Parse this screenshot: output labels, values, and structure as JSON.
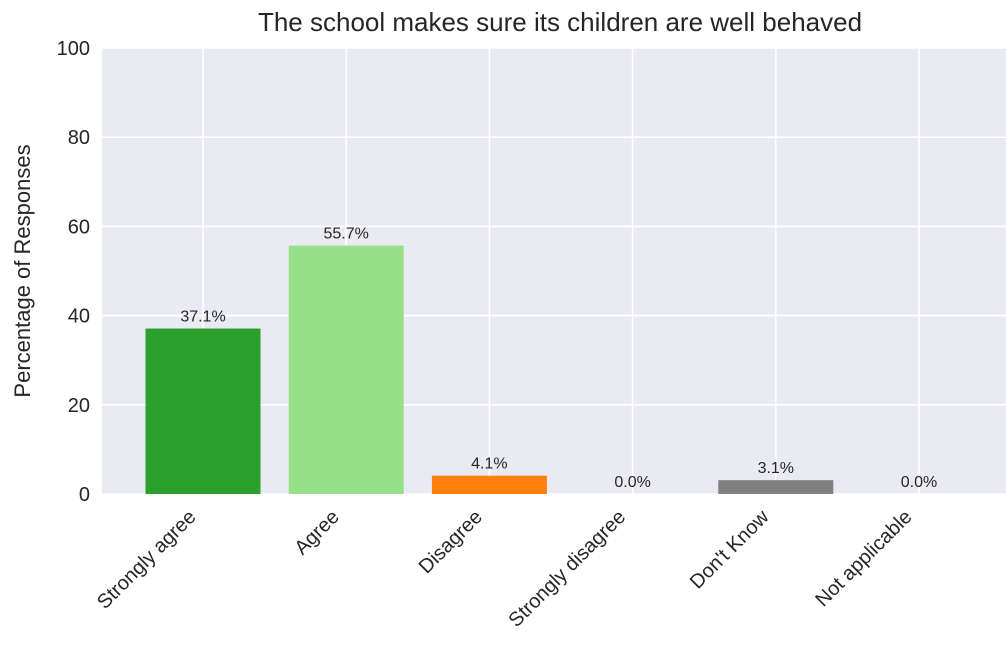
{
  "chart_data": {
    "type": "bar",
    "title": "The school makes sure its children are well behaved",
    "xlabel": "",
    "ylabel": "Percentage of Responses",
    "ylim": [
      0,
      100
    ],
    "yticks": [
      0,
      20,
      40,
      60,
      80,
      100
    ],
    "grid": true,
    "categories": [
      "Strongly agree",
      "Agree",
      "Disagree",
      "Strongly disagree",
      "Don't Know",
      "Not applicable"
    ],
    "values": [
      37.1,
      55.7,
      4.1,
      0.0,
      3.1,
      0.0
    ],
    "data_labels": [
      "37.1%",
      "55.7%",
      "4.1%",
      "0.0%",
      "3.1%",
      "0.0%"
    ],
    "colors": [
      "#2ca02c",
      "#98df8a",
      "#ff7f0e",
      "#d62728",
      "#7f7f7f",
      "#c7c7c7"
    ],
    "background": "#eaeaf2",
    "grid_color": "#ffffff"
  }
}
